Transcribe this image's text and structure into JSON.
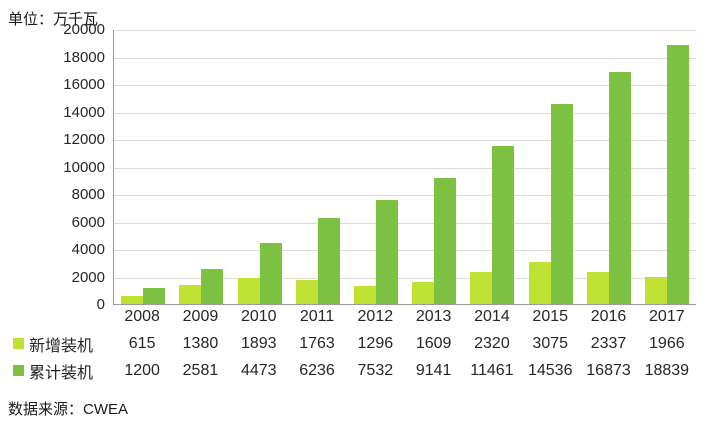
{
  "chart_data": {
    "type": "bar",
    "unit_label": "单位：万千瓦",
    "source_label": "数据来源：CWEA",
    "categories": [
      "2008",
      "2009",
      "2010",
      "2011",
      "2012",
      "2013",
      "2014",
      "2015",
      "2016",
      "2017"
    ],
    "series": [
      {
        "name": "新增装机",
        "color": "#bfe234",
        "values": [
          615,
          1380,
          1893,
          1763,
          1296,
          1609,
          2320,
          3075,
          2337,
          1966
        ]
      },
      {
        "name": "累计装机",
        "color": "#7dc142",
        "values": [
          1200,
          2581,
          4473,
          6236,
          7532,
          9141,
          11461,
          14536,
          16873,
          18839
        ]
      }
    ],
    "ylim": [
      0,
      20000
    ],
    "yticks": [
      0,
      2000,
      4000,
      6000,
      8000,
      10000,
      12000,
      14000,
      16000,
      18000,
      20000
    ],
    "xlabel": "",
    "ylabel": "",
    "grid": true,
    "legend_position": "bottom-table"
  },
  "colors": {
    "bar_new": "#bfe234",
    "bar_cumulative": "#7dc142",
    "gridline": "#dcdcdc",
    "axis": "#9a9a9a",
    "text": "#262626",
    "background": "#ffffff"
  }
}
